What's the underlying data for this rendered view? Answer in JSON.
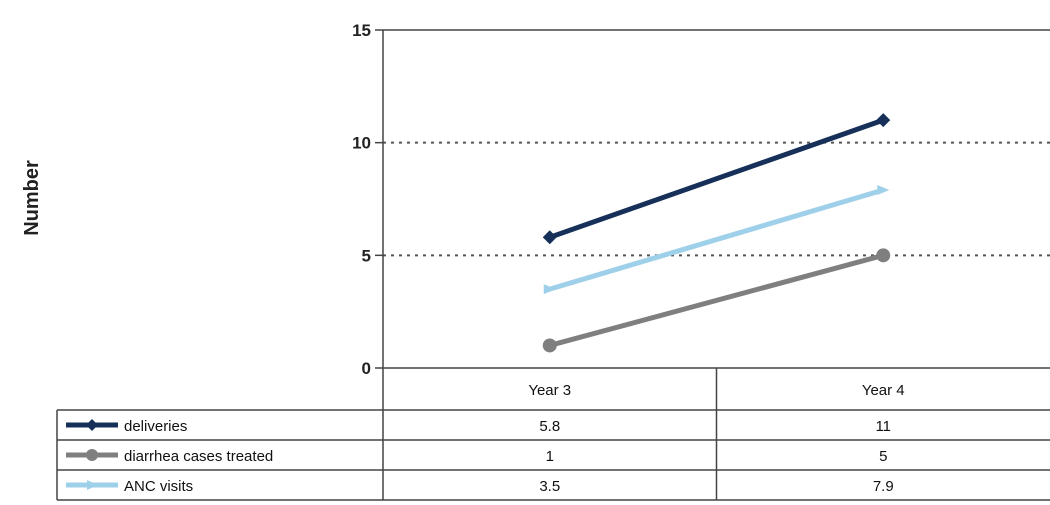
{
  "chart_data": {
    "type": "line",
    "ylabel": "Number",
    "ylim": [
      0,
      15
    ],
    "yticks": [
      "0",
      "5",
      "10",
      "15"
    ],
    "grid": "horizontal-dotted",
    "legend_placement": "data-table-left",
    "categories": [
      "Year 3",
      "Year 4"
    ],
    "series": [
      {
        "name": "deliveries",
        "values": [
          5.8,
          11
        ],
        "labels": [
          "5.8",
          "11"
        ],
        "color": "#16305a"
      },
      {
        "name": "diarrhea cases treated",
        "values": [
          1,
          5
        ],
        "labels": [
          "1",
          "5"
        ],
        "color": "#7f7f7f"
      },
      {
        "name": "ANC visits",
        "values": [
          3.5,
          7.9
        ],
        "labels": [
          "3.5",
          "7.9"
        ],
        "color": "#9fd0ea"
      }
    ]
  }
}
